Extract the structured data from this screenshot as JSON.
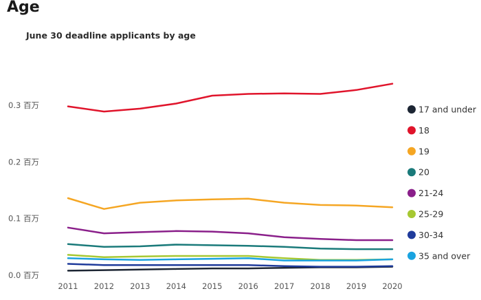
{
  "page": {
    "heading": "Age"
  },
  "chart_data": {
    "type": "line",
    "title": "June 30 deadline applicants by age",
    "xlabel": "",
    "ylabel": "",
    "x": [
      "2011",
      "2012",
      "2013",
      "2014",
      "2015",
      "2016",
      "2017",
      "2018",
      "2019",
      "2020"
    ],
    "ylim": [
      0,
      0.35
    ],
    "yticks": [
      0,
      0.1,
      0.2,
      0.3
    ],
    "ytick_labels": [
      "0.0 百万",
      "0.1 百万",
      "0.2 百万",
      "0.3 百万"
    ],
    "grid": false,
    "legend_position": "right",
    "series": [
      {
        "name": "17 and under",
        "color": "#1c2533",
        "values": [
          0.008,
          0.009,
          0.01,
          0.011,
          0.012,
          0.012,
          0.013,
          0.014,
          0.014,
          0.015
        ]
      },
      {
        "name": "18",
        "color": "#e0142b",
        "values": [
          0.298,
          0.289,
          0.294,
          0.303,
          0.317,
          0.32,
          0.321,
          0.32,
          0.327,
          0.338
        ]
      },
      {
        "name": "19",
        "color": "#f5a623",
        "values": [
          0.136,
          0.117,
          0.128,
          0.132,
          0.134,
          0.135,
          0.128,
          0.124,
          0.123,
          0.12
        ]
      },
      {
        "name": "20",
        "color": "#1a7a7a",
        "values": [
          0.055,
          0.05,
          0.051,
          0.054,
          0.053,
          0.052,
          0.05,
          0.047,
          0.046,
          0.046
        ]
      },
      {
        "name": "21-24",
        "color": "#8a1f8a",
        "values": [
          0.084,
          0.074,
          0.076,
          0.078,
          0.077,
          0.074,
          0.067,
          0.064,
          0.062,
          0.062
        ]
      },
      {
        "name": "25-29",
        "color": "#a6c832",
        "values": [
          0.036,
          0.032,
          0.033,
          0.034,
          0.034,
          0.034,
          0.03,
          0.027,
          0.027,
          0.028
        ]
      },
      {
        "name": "30-34",
        "color": "#1f3b9b",
        "values": [
          0.02,
          0.018,
          0.018,
          0.018,
          0.018,
          0.018,
          0.016,
          0.015,
          0.015,
          0.016
        ]
      },
      {
        "name": "35 and over",
        "color": "#1aa3e0",
        "values": [
          0.03,
          0.028,
          0.027,
          0.028,
          0.029,
          0.03,
          0.026,
          0.026,
          0.026,
          0.028
        ]
      }
    ]
  }
}
